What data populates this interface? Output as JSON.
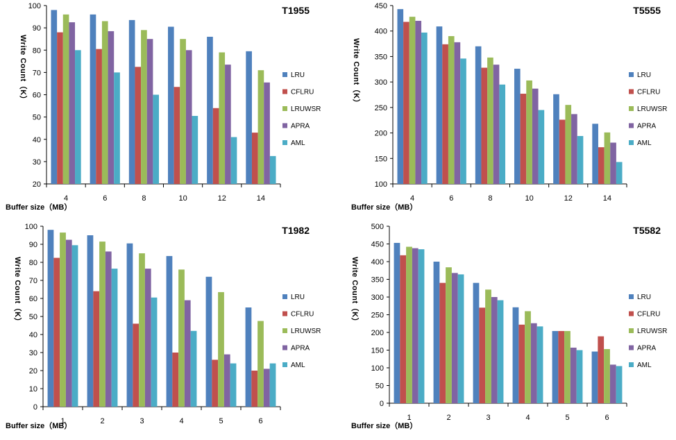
{
  "chart_data": [
    {
      "type": "bar",
      "title": "T1955",
      "xlabel": "Buffer size（MB）",
      "ylabel": "Write Count（K）",
      "ylim": [
        20,
        100
      ],
      "yticks": [
        20,
        30,
        40,
        50,
        60,
        70,
        80,
        90,
        100
      ],
      "categories": [
        "4",
        "6",
        "8",
        "10",
        "12",
        "14"
      ],
      "grid": false,
      "legend_position": "right",
      "series": [
        {
          "name": "LRU",
          "color": "#4f81bd",
          "values": [
            98,
            96,
            93.5,
            90.5,
            86,
            79.5
          ]
        },
        {
          "name": "CFLRU",
          "color": "#c0504d",
          "values": [
            88,
            80.5,
            72.5,
            63.5,
            54,
            43
          ]
        },
        {
          "name": "LRUWSR",
          "color": "#9bbb59",
          "values": [
            96,
            93,
            89,
            85,
            79,
            71
          ]
        },
        {
          "name": "APRA",
          "color": "#8064a2",
          "values": [
            92.5,
            88.5,
            85,
            80,
            73.5,
            65.5
          ]
        },
        {
          "name": "AML",
          "color": "#4bacc6",
          "values": [
            80,
            70,
            60,
            50.5,
            41,
            32.5
          ]
        }
      ]
    },
    {
      "type": "bar",
      "title": "T5555",
      "xlabel": "Buffer size（MB）",
      "ylabel": "Write Count（K）",
      "ylim": [
        100,
        450
      ],
      "yticks": [
        100,
        150,
        200,
        250,
        300,
        350,
        400,
        450
      ],
      "categories": [
        "4",
        "6",
        "8",
        "10",
        "12",
        "14"
      ],
      "grid": false,
      "legend_position": "right",
      "series": [
        {
          "name": "LRU",
          "color": "#4f81bd",
          "values": [
            443,
            409,
            370,
            326,
            276,
            218
          ]
        },
        {
          "name": "CFLRU",
          "color": "#c0504d",
          "values": [
            418,
            374,
            328,
            277,
            226,
            172
          ]
        },
        {
          "name": "LRUWSR",
          "color": "#9bbb59",
          "values": [
            428,
            390,
            348,
            303,
            255,
            201
          ]
        },
        {
          "name": "APRA",
          "color": "#8064a2",
          "values": [
            420,
            378,
            334,
            287,
            237,
            181
          ]
        },
        {
          "name": "AML",
          "color": "#4bacc6",
          "values": [
            397,
            346,
            295,
            245,
            194,
            143
          ]
        }
      ]
    },
    {
      "type": "bar",
      "title": "T1982",
      "xlabel": "Buffer size（MB）",
      "ylabel": "Write Count（K）",
      "ylim": [
        0,
        100
      ],
      "yticks": [
        0,
        10,
        20,
        30,
        40,
        50,
        60,
        70,
        80,
        90,
        100
      ],
      "categories": [
        "1",
        "2",
        "3",
        "4",
        "5",
        "6"
      ],
      "grid": false,
      "legend_position": "right",
      "series": [
        {
          "name": "LRU",
          "color": "#4f81bd",
          "values": [
            98,
            95,
            90.5,
            83.5,
            72,
            55
          ]
        },
        {
          "name": "CFLRU",
          "color": "#c0504d",
          "values": [
            82.5,
            64,
            46,
            30,
            26,
            20
          ]
        },
        {
          "name": "LRUWSR",
          "color": "#9bbb59",
          "values": [
            96.5,
            91.5,
            85,
            76,
            63.5,
            47.5
          ]
        },
        {
          "name": "APRA",
          "color": "#8064a2",
          "values": [
            92.5,
            86,
            76.5,
            59,
            29,
            21
          ]
        },
        {
          "name": "AML",
          "color": "#4bacc6",
          "values": [
            89.5,
            76.5,
            60.5,
            42,
            24,
            24
          ]
        }
      ]
    },
    {
      "type": "bar",
      "title": "T5582",
      "xlabel": "Buffer size（MB）",
      "ylabel": "Write Count（K）",
      "ylim": [
        0,
        500
      ],
      "yticks": [
        0,
        50,
        100,
        150,
        200,
        250,
        300,
        350,
        400,
        450,
        500
      ],
      "categories": [
        "1",
        "2",
        "3",
        "4",
        "5",
        "6"
      ],
      "grid": false,
      "legend_position": "right",
      "series": [
        {
          "name": "LRU",
          "color": "#4f81bd",
          "values": [
            453,
            400,
            340,
            271,
            204,
            146
          ]
        },
        {
          "name": "CFLRU",
          "color": "#c0504d",
          "values": [
            418,
            340,
            270,
            222,
            204,
            189
          ]
        },
        {
          "name": "LRUWSR",
          "color": "#9bbb59",
          "values": [
            442,
            384,
            321,
            260,
            204,
            153
          ]
        },
        {
          "name": "APRA",
          "color": "#8064a2",
          "values": [
            438,
            368,
            300,
            226,
            157,
            109
          ]
        },
        {
          "name": "AML",
          "color": "#4bacc6",
          "values": [
            435,
            364,
            291,
            217,
            150,
            105
          ]
        }
      ]
    }
  ]
}
